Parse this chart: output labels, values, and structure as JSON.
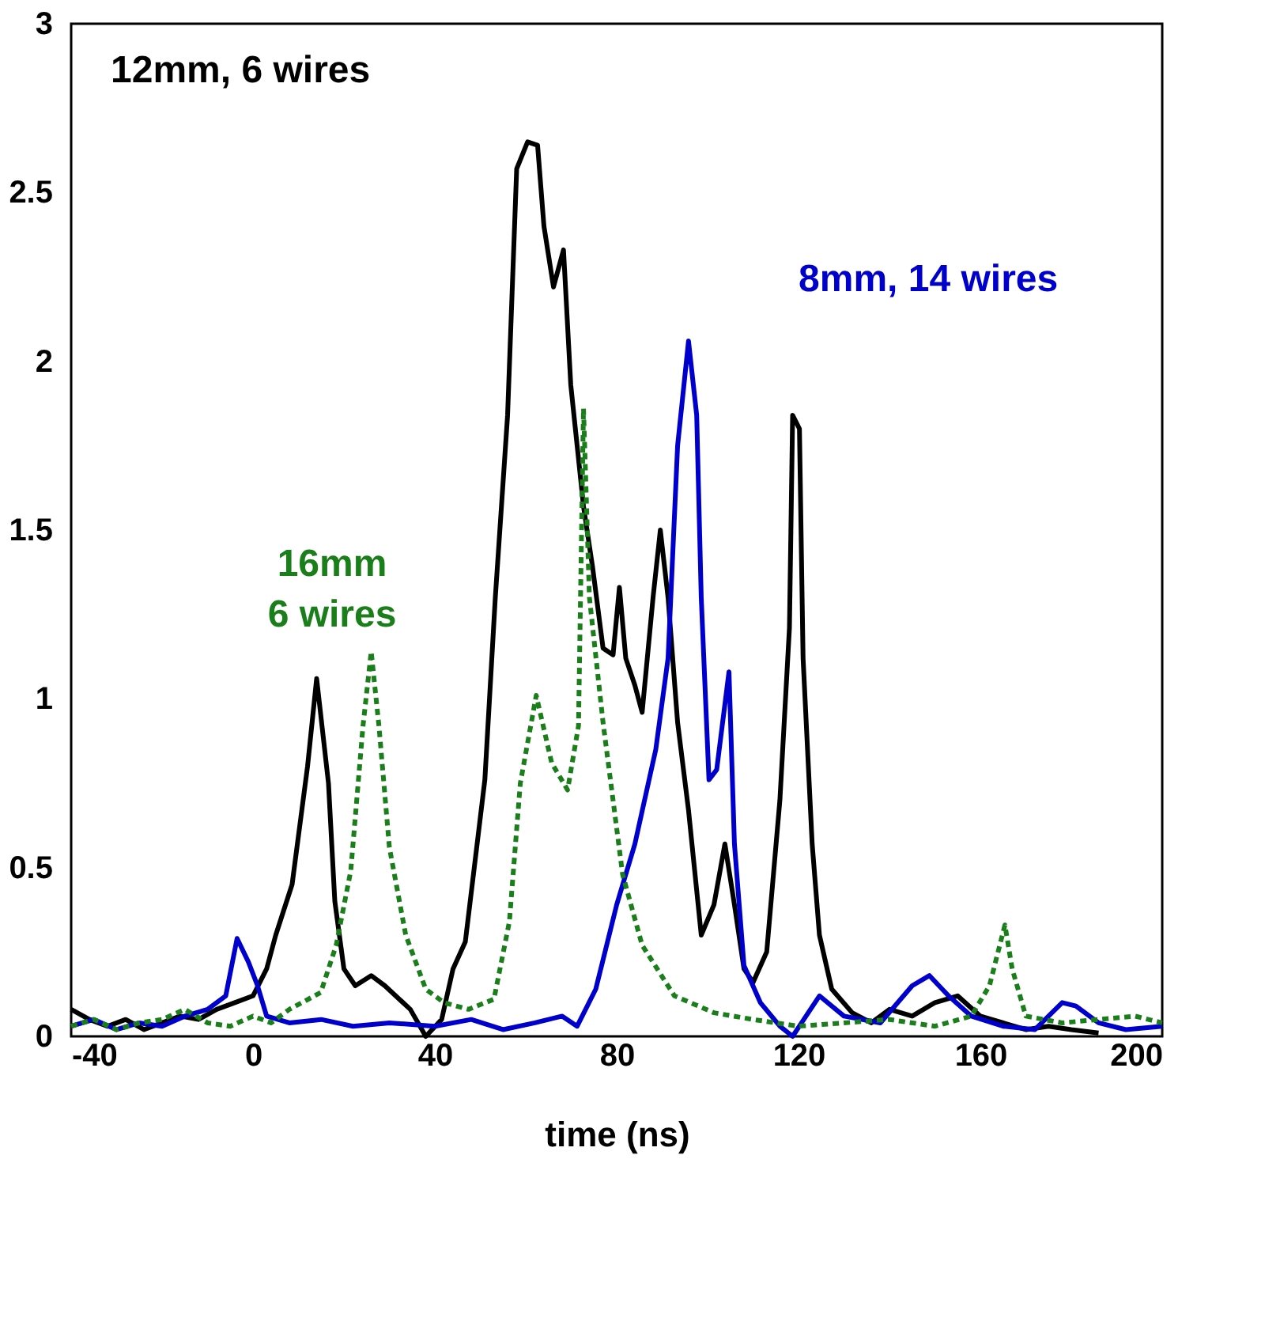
{
  "chart_data": {
    "type": "line",
    "xlabel": "time (ns)",
    "xlim": [
      -40,
      200
    ],
    "xticks": [
      -40,
      0,
      40,
      80,
      120,
      160,
      200
    ],
    "ylim": [
      0,
      3
    ],
    "yticks": [
      0,
      0.5,
      1,
      1.5,
      2,
      2.5,
      3
    ],
    "grid": false,
    "marker": "none",
    "series": [
      {
        "name": "12mm, 6 wires",
        "color": "#000000",
        "line_style": "solid",
        "x": [
          -40,
          -36,
          -32,
          -28,
          -24,
          -20,
          -16,
          -12,
          -8,
          -4,
          0,
          3,
          5,
          8.6,
          12,
          14,
          16.6,
          18,
          20,
          22.5,
          26,
          29,
          34.6,
          38,
          41.5,
          44,
          46.7,
          51,
          53.3,
          56,
          58,
          60.4,
          62.6,
          64,
          66.1,
          68.3,
          69.9,
          72.7,
          74.7,
          77,
          79.2,
          80.6,
          82,
          84,
          85.6,
          88,
          89.6,
          91.3,
          93.4,
          95.8,
          98.6,
          101.4,
          103.8,
          105.9,
          108,
          110,
          113,
          115.9,
          118,
          118.7,
          120.2,
          121,
          123,
          124.6,
          127.3,
          131.8,
          136,
          140,
          145,
          150,
          155,
          160,
          165,
          170,
          175,
          180,
          186
        ],
        "values": [
          0.08,
          0.05,
          0.03,
          0.05,
          0.02,
          0.04,
          0.06,
          0.05,
          0.08,
          0.1,
          0.12,
          0.2,
          0.3,
          0.45,
          0.8,
          1.06,
          0.75,
          0.4,
          0.2,
          0.15,
          0.18,
          0.15,
          0.08,
          0.0,
          0.05,
          0.2,
          0.28,
          0.76,
          1.3,
          1.84,
          2.57,
          2.65,
          2.64,
          2.4,
          2.22,
          2.33,
          1.93,
          1.57,
          1.39,
          1.15,
          1.13,
          1.33,
          1.12,
          1.04,
          0.96,
          1.3,
          1.5,
          1.3,
          0.93,
          0.67,
          0.3,
          0.39,
          0.57,
          0.39,
          0.2,
          0.16,
          0.25,
          0.7,
          1.21,
          1.84,
          1.8,
          1.12,
          0.57,
          0.3,
          0.14,
          0.07,
          0.04,
          0.08,
          0.06,
          0.1,
          0.12,
          0.06,
          0.04,
          0.02,
          0.03,
          0.02,
          0.01
        ]
      },
      {
        "name": "8mm, 14 wires",
        "color": "#0000cc",
        "line_style": "solid",
        "x": [
          -40,
          -35,
          -30,
          -25,
          -20,
          -15,
          -10,
          -6,
          -3.5,
          -1,
          1,
          3,
          8,
          15,
          22,
          30,
          40,
          48,
          55,
          62,
          68,
          71.3,
          75.4,
          80,
          84,
          88.6,
          91.3,
          93.4,
          95.8,
          97.6,
          98.6,
          100.3,
          102,
          104.7,
          105.9,
          108,
          111.6,
          115.9,
          118.7,
          124.6,
          130,
          138,
          145,
          148.8,
          153,
          158,
          165,
          172,
          178,
          181,
          186,
          192,
          200
        ],
        "values": [
          0.03,
          0.05,
          0.02,
          0.04,
          0.03,
          0.06,
          0.08,
          0.12,
          0.29,
          0.22,
          0.15,
          0.06,
          0.04,
          0.05,
          0.03,
          0.04,
          0.03,
          0.05,
          0.02,
          0.04,
          0.06,
          0.03,
          0.14,
          0.39,
          0.57,
          0.85,
          1.12,
          1.75,
          2.06,
          1.84,
          1.3,
          0.76,
          0.79,
          1.08,
          0.57,
          0.21,
          0.1,
          0.03,
          0.0,
          0.12,
          0.06,
          0.04,
          0.15,
          0.18,
          0.12,
          0.06,
          0.03,
          0.02,
          0.1,
          0.09,
          0.04,
          0.02,
          0.03
        ]
      },
      {
        "name": "16mm\n6 wires",
        "color": "#1a7f1a",
        "line_style": "dotted",
        "x": [
          -40,
          -35,
          -30,
          -25,
          -20,
          -15,
          -10,
          -5,
          0,
          4,
          8,
          14.9,
          18.3,
          21.5,
          24.2,
          26,
          27.7,
          30,
          33.6,
          38,
          42,
          47.4,
          53,
          56.4,
          58.8,
          62.3,
          65.7,
          69.2,
          71.6,
          72.7,
          74,
          77,
          81.3,
          85.6,
          92.7,
          101.4,
          110,
          120,
          130,
          140,
          150,
          158,
          162,
          165.4,
          167,
          170,
          178,
          186,
          194,
          200
        ],
        "values": [
          0.03,
          0.05,
          0.02,
          0.04,
          0.05,
          0.08,
          0.04,
          0.03,
          0.06,
          0.04,
          0.08,
          0.13,
          0.27,
          0.49,
          0.92,
          1.14,
          0.92,
          0.56,
          0.3,
          0.14,
          0.1,
          0.08,
          0.11,
          0.34,
          0.75,
          1.01,
          0.81,
          0.73,
          0.92,
          1.86,
          1.3,
          0.93,
          0.48,
          0.27,
          0.12,
          0.07,
          0.05,
          0.03,
          0.04,
          0.05,
          0.03,
          0.06,
          0.15,
          0.33,
          0.2,
          0.06,
          0.04,
          0.05,
          0.06,
          0.04
        ]
      }
    ]
  }
}
